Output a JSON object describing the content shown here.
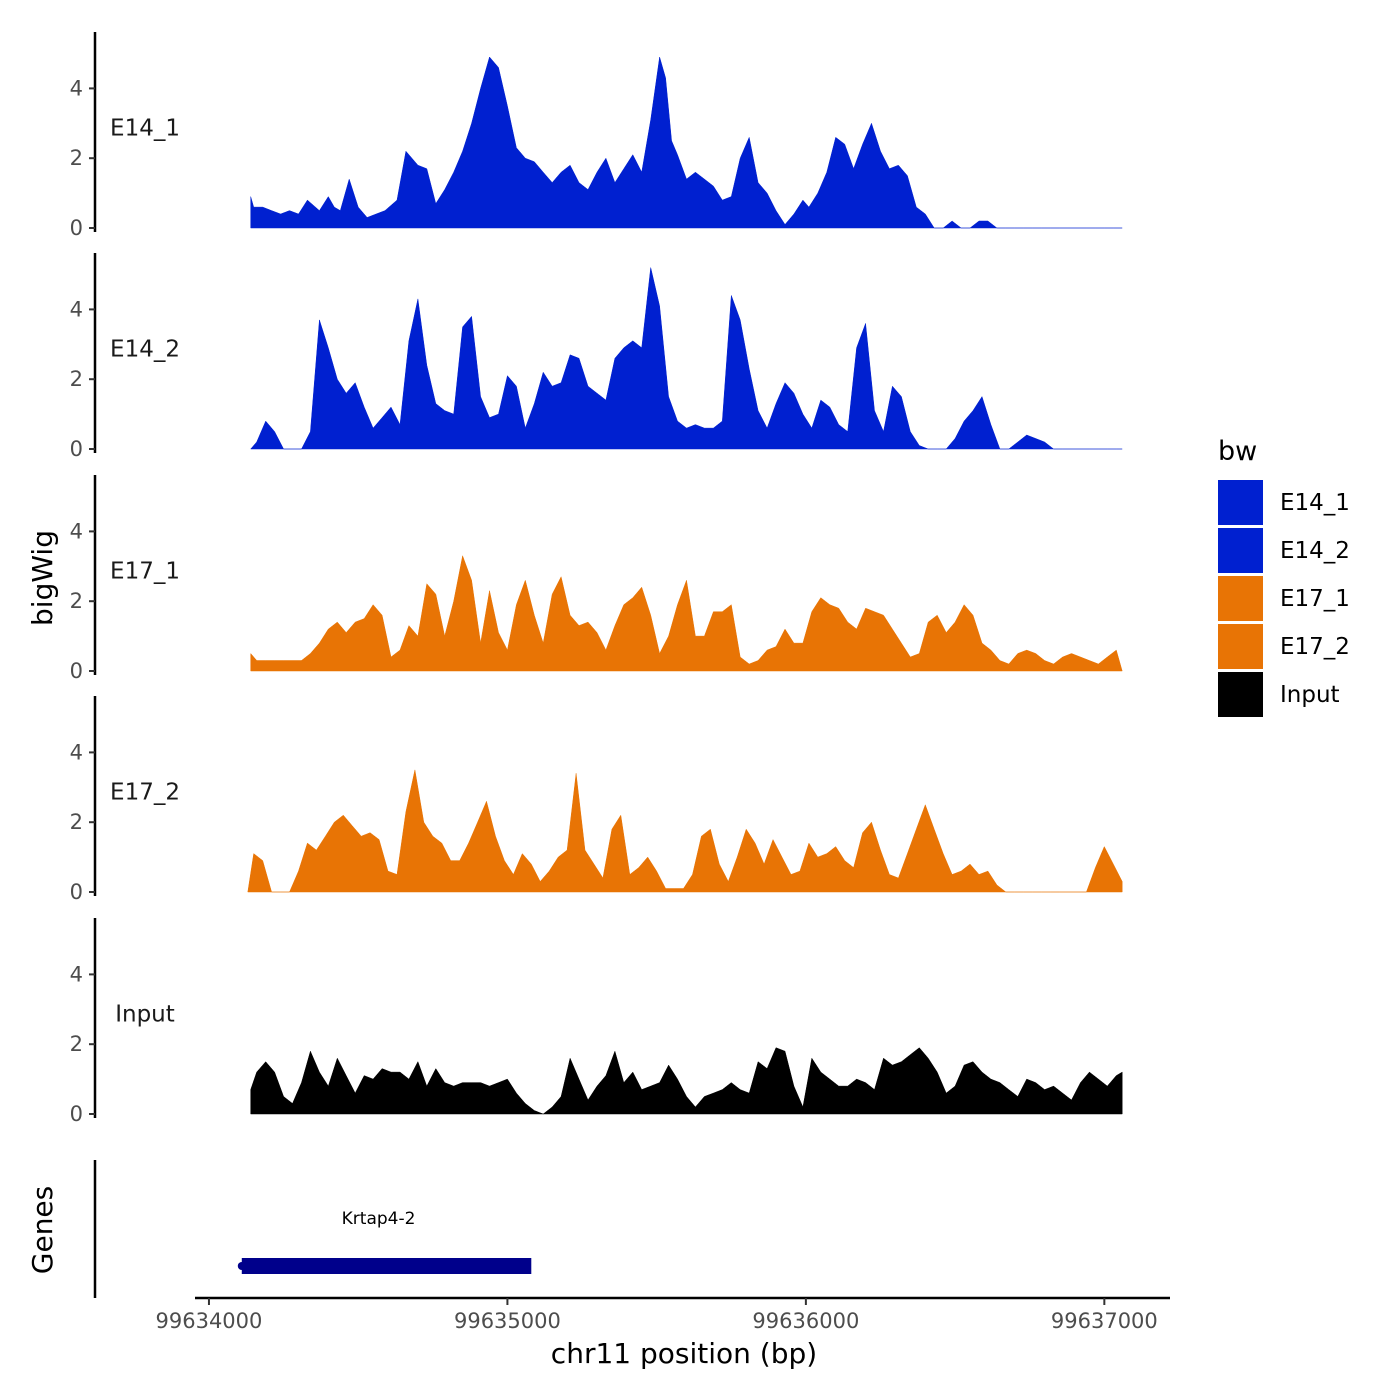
{
  "chart_data": {
    "type": "area",
    "ylabel": "bigWig",
    "xlabel": "chr11 position (bp)",
    "ylim": [
      0,
      5.6
    ],
    "yticks": [
      0,
      2,
      4
    ],
    "ytick_labels": [
      "0",
      "2",
      "4"
    ],
    "xlim": [
      99633970,
      99637220
    ],
    "xticks": [
      99634000,
      99635000,
      99636000,
      99637000
    ],
    "xtick_labels": [
      "99634000",
      "99635000",
      "99636000",
      "99637000"
    ],
    "legend": {
      "title": "bw",
      "entries": [
        {
          "label": "E14_1",
          "color": "#0020d0"
        },
        {
          "label": "E14_2",
          "color": "#0020d0"
        },
        {
          "label": "E17_1",
          "color": "#e87405"
        },
        {
          "label": "E17_2",
          "color": "#e87405"
        },
        {
          "label": "Input",
          "color": "#000000"
        }
      ]
    },
    "series": [
      {
        "name": "E14_1",
        "color": "#0020d0",
        "x": [
          99634140,
          99634150,
          99634180,
          99634210,
          99634240,
          99634270,
          99634300,
          99634330,
          99634370,
          99634400,
          99634420,
          99634440,
          99634470,
          99634500,
          99634530,
          99634560,
          99634590,
          99634630,
          99634660,
          99634700,
          99634730,
          99634760,
          99634790,
          99634820,
          99634850,
          99634880,
          99634910,
          99634940,
          99634970,
          99635000,
          99635030,
          99635060,
          99635090,
          99635120,
          99635150,
          99635180,
          99635210,
          99635240,
          99635270,
          99635300,
          99635330,
          99635360,
          99635390,
          99635420,
          99635450,
          99635480,
          99635510,
          99635530,
          99635550,
          99635570,
          99635600,
          99635630,
          99635660,
          99635690,
          99635720,
          99635750,
          99635780,
          99635810,
          99635840,
          99635870,
          99635900,
          99635930,
          99635960,
          99635990,
          99636010,
          99636040,
          99636070,
          99636100,
          99636130,
          99636160,
          99636190,
          99636220,
          99636250,
          99636280,
          99636310,
          99636340,
          99636370,
          99636400,
          99636430,
          99636460,
          99636490,
          99636520,
          99636550,
          99636580,
          99636610,
          99636640,
          99636670,
          99636700,
          99636730,
          99636760,
          99636790,
          99636820,
          99636850,
          99636880,
          99636910,
          99636940,
          99636970,
          99637000,
          99637030,
          99637060
        ],
        "values": [
          0.9,
          0.6,
          0.6,
          0.5,
          0.4,
          0.5,
          0.4,
          0.8,
          0.5,
          0.9,
          0.6,
          0.5,
          1.4,
          0.6,
          0.3,
          0.4,
          0.5,
          0.8,
          2.2,
          1.8,
          1.7,
          0.7,
          1.1,
          1.6,
          2.2,
          3.0,
          4.0,
          4.9,
          4.6,
          3.5,
          2.3,
          2.0,
          1.9,
          1.6,
          1.3,
          1.6,
          1.8,
          1.3,
          1.1,
          1.6,
          2.0,
          1.3,
          1.7,
          2.1,
          1.6,
          3.1,
          4.9,
          4.3,
          2.5,
          2.1,
          1.4,
          1.6,
          1.4,
          1.2,
          0.8,
          0.9,
          2.0,
          2.6,
          1.3,
          1.0,
          0.5,
          0.1,
          0.4,
          0.8,
          0.6,
          1.0,
          1.6,
          2.6,
          2.4,
          1.7,
          2.4,
          3.0,
          2.2,
          1.7,
          1.8,
          1.5,
          0.6,
          0.4,
          0.0,
          0.0,
          0.2,
          0.0,
          0.0,
          0.2,
          0.2,
          0.0,
          0.0,
          0.0,
          0.0,
          0.0,
          0.0,
          0.0,
          0.0,
          0.0,
          0.0,
          0.0,
          0.0,
          0.0,
          0.0,
          0.0
        ]
      },
      {
        "name": "E14_2",
        "color": "#0020d0",
        "x": [
          99634140,
          99634160,
          99634190,
          99634220,
          99634250,
          99634280,
          99634310,
          99634340,
          99634370,
          99634400,
          99634430,
          99634460,
          99634490,
          99634520,
          99634550,
          99634580,
          99634610,
          99634640,
          99634670,
          99634700,
          99634730,
          99634760,
          99634790,
          99634820,
          99634850,
          99634880,
          99634910,
          99634940,
          99634970,
          99635000,
          99635030,
          99635060,
          99635090,
          99635120,
          99635150,
          99635180,
          99635210,
          99635240,
          99635270,
          99635300,
          99635330,
          99635360,
          99635390,
          99635420,
          99635450,
          99635480,
          99635510,
          99635540,
          99635570,
          99635600,
          99635630,
          99635660,
          99635690,
          99635720,
          99635750,
          99635780,
          99635810,
          99635840,
          99635870,
          99635900,
          99635930,
          99635960,
          99635990,
          99636020,
          99636050,
          99636080,
          99636110,
          99636140,
          99636170,
          99636200,
          99636230,
          99636260,
          99636290,
          99636320,
          99636350,
          99636380,
          99636410,
          99636440,
          99636470,
          99636500,
          99636530,
          99636560,
          99636590,
          99636620,
          99636650,
          99636680,
          99636710,
          99636740,
          99636770,
          99636800,
          99636830,
          99636860,
          99636890,
          99636920,
          99636950,
          99636980,
          99637010,
          99637040,
          99637060
        ],
        "values": [
          0.0,
          0.2,
          0.8,
          0.5,
          0.0,
          0.0,
          0.0,
          0.5,
          3.7,
          2.9,
          2.0,
          1.6,
          1.9,
          1.2,
          0.6,
          0.9,
          1.2,
          0.7,
          3.1,
          4.3,
          2.4,
          1.3,
          1.1,
          1.0,
          3.5,
          3.8,
          1.5,
          0.9,
          1.0,
          2.1,
          1.8,
          0.6,
          1.3,
          2.2,
          1.8,
          1.9,
          2.7,
          2.6,
          1.8,
          1.6,
          1.4,
          2.6,
          2.9,
          3.1,
          2.9,
          5.2,
          4.1,
          1.5,
          0.8,
          0.6,
          0.7,
          0.6,
          0.6,
          0.8,
          4.4,
          3.7,
          2.3,
          1.1,
          0.6,
          1.3,
          1.9,
          1.6,
          1.0,
          0.6,
          1.4,
          1.2,
          0.7,
          0.5,
          2.9,
          3.6,
          1.1,
          0.5,
          1.8,
          1.5,
          0.5,
          0.1,
          0.0,
          0.0,
          0.0,
          0.3,
          0.8,
          1.1,
          1.5,
          0.7,
          0.0,
          0.0,
          0.2,
          0.4,
          0.3,
          0.2,
          0.0,
          0.0,
          0.0,
          0.0,
          0.0,
          0.0,
          0.0,
          0.0,
          0.0
        ]
      },
      {
        "name": "E17_1",
        "color": "#e87405",
        "x": [
          99634140,
          99634160,
          99634190,
          99634220,
          99634250,
          99634280,
          99634310,
          99634340,
          99634370,
          99634400,
          99634430,
          99634460,
          99634490,
          99634520,
          99634550,
          99634580,
          99634610,
          99634640,
          99634670,
          99634700,
          99634730,
          99634760,
          99634790,
          99634820,
          99634850,
          99634880,
          99634910,
          99634940,
          99634970,
          99635000,
          99635030,
          99635060,
          99635090,
          99635120,
          99635150,
          99635180,
          99635210,
          99635240,
          99635270,
          99635300,
          99635330,
          99635360,
          99635390,
          99635420,
          99635450,
          99635480,
          99635510,
          99635540,
          99635570,
          99635600,
          99635630,
          99635660,
          99635690,
          99635720,
          99635750,
          99635780,
          99635810,
          99635840,
          99635870,
          99635900,
          99635930,
          99635960,
          99635990,
          99636020,
          99636050,
          99636080,
          99636110,
          99636140,
          99636170,
          99636200,
          99636230,
          99636260,
          99636290,
          99636320,
          99636350,
          99636380,
          99636410,
          99636440,
          99636470,
          99636500,
          99636530,
          99636560,
          99636590,
          99636620,
          99636650,
          99636680,
          99636710,
          99636740,
          99636770,
          99636800,
          99636830,
          99636860,
          99636890,
          99636920,
          99636950,
          99636980,
          99637010,
          99637040,
          99637060
        ],
        "values": [
          0.5,
          0.3,
          0.3,
          0.3,
          0.3,
          0.3,
          0.3,
          0.5,
          0.8,
          1.2,
          1.4,
          1.1,
          1.4,
          1.5,
          1.9,
          1.6,
          0.4,
          0.6,
          1.3,
          1.0,
          2.5,
          2.2,
          1.0,
          2.0,
          3.3,
          2.6,
          0.8,
          2.3,
          1.1,
          0.6,
          1.9,
          2.6,
          1.6,
          0.8,
          2.2,
          2.7,
          1.6,
          1.3,
          1.4,
          1.1,
          0.6,
          1.3,
          1.9,
          2.1,
          2.4,
          1.6,
          0.5,
          1.0,
          1.9,
          2.6,
          1.0,
          1.0,
          1.7,
          1.7,
          1.9,
          0.4,
          0.2,
          0.3,
          0.6,
          0.7,
          1.2,
          0.8,
          0.8,
          1.7,
          2.1,
          1.9,
          1.8,
          1.4,
          1.2,
          1.8,
          1.7,
          1.6,
          1.2,
          0.8,
          0.4,
          0.5,
          1.4,
          1.6,
          1.1,
          1.4,
          1.9,
          1.6,
          0.8,
          0.6,
          0.3,
          0.2,
          0.5,
          0.6,
          0.5,
          0.3,
          0.2,
          0.4,
          0.5,
          0.4,
          0.3,
          0.2,
          0.4,
          0.6,
          0.0
        ]
      },
      {
        "name": "E17_2",
        "color": "#e87405",
        "x": [
          99634130,
          99634150,
          99634180,
          99634210,
          99634240,
          99634270,
          99634300,
          99634330,
          99634360,
          99634390,
          99634420,
          99634450,
          99634480,
          99634510,
          99634540,
          99634570,
          99634600,
          99634630,
          99634660,
          99634690,
          99634720,
          99634750,
          99634780,
          99634810,
          99634840,
          99634870,
          99634900,
          99634930,
          99634960,
          99634990,
          99635020,
          99635050,
          99635080,
          99635110,
          99635140,
          99635170,
          99635200,
          99635230,
          99635260,
          99635290,
          99635320,
          99635350,
          99635380,
          99635410,
          99635440,
          99635470,
          99635500,
          99635530,
          99635560,
          99635590,
          99635620,
          99635650,
          99635680,
          99635710,
          99635740,
          99635770,
          99635800,
          99635830,
          99635860,
          99635890,
          99635920,
          99635950,
          99635980,
          99636010,
          99636040,
          99636070,
          99636100,
          99636130,
          99636160,
          99636190,
          99636220,
          99636250,
          99636280,
          99636310,
          99636340,
          99636370,
          99636400,
          99636430,
          99636460,
          99636490,
          99636520,
          99636550,
          99636580,
          99636610,
          99636640,
          99636670,
          99636700,
          99636730,
          99636760,
          99636790,
          99636820,
          99636850,
          99636880,
          99636910,
          99636940,
          99636970,
          99637000,
          99637030,
          99637060
        ],
        "values": [
          0.0,
          1.1,
          0.9,
          0.0,
          0.0,
          0.0,
          0.6,
          1.4,
          1.2,
          1.6,
          2.0,
          2.2,
          1.9,
          1.6,
          1.7,
          1.5,
          0.6,
          0.5,
          2.3,
          3.5,
          2.0,
          1.6,
          1.4,
          0.9,
          0.9,
          1.4,
          2.0,
          2.6,
          1.6,
          0.9,
          0.5,
          1.1,
          0.8,
          0.3,
          0.6,
          1.0,
          1.2,
          3.4,
          1.2,
          0.8,
          0.4,
          1.8,
          2.2,
          0.5,
          0.7,
          1.0,
          0.6,
          0.1,
          0.1,
          0.1,
          0.5,
          1.6,
          1.8,
          0.8,
          0.3,
          1.0,
          1.8,
          1.4,
          0.8,
          1.5,
          1.0,
          0.5,
          0.6,
          1.4,
          1.0,
          1.1,
          1.3,
          0.9,
          0.7,
          1.7,
          2.0,
          1.2,
          0.5,
          0.4,
          1.1,
          1.8,
          2.5,
          1.8,
          1.1,
          0.5,
          0.6,
          0.8,
          0.5,
          0.6,
          0.2,
          0.0,
          0.0,
          0.0,
          0.0,
          0.0,
          0.0,
          0.0,
          0.0,
          0.0,
          0.0,
          0.7,
          1.3,
          0.8,
          0.3
        ]
      },
      {
        "name": "Input",
        "color": "#000000",
        "x": [
          99634140,
          99634160,
          99634190,
          99634220,
          99634250,
          99634280,
          99634310,
          99634340,
          99634370,
          99634400,
          99634430,
          99634460,
          99634490,
          99634520,
          99634550,
          99634580,
          99634610,
          99634640,
          99634670,
          99634700,
          99634730,
          99634760,
          99634790,
          99634820,
          99634850,
          99634880,
          99634910,
          99634940,
          99634970,
          99635000,
          99635030,
          99635060,
          99635090,
          99635120,
          99635150,
          99635180,
          99635210,
          99635240,
          99635270,
          99635300,
          99635330,
          99635360,
          99635390,
          99635420,
          99635450,
          99635480,
          99635510,
          99635540,
          99635570,
          99635600,
          99635630,
          99635660,
          99635690,
          99635720,
          99635750,
          99635780,
          99635810,
          99635840,
          99635870,
          99635900,
          99635930,
          99635960,
          99635990,
          99636020,
          99636050,
          99636080,
          99636110,
          99636140,
          99636170,
          99636200,
          99636230,
          99636260,
          99636290,
          99636320,
          99636350,
          99636380,
          99636410,
          99636440,
          99636470,
          99636500,
          99636530,
          99636560,
          99636590,
          99636620,
          99636650,
          99636680,
          99636710,
          99636740,
          99636770,
          99636800,
          99636830,
          99636860,
          99636890,
          99636920,
          99636950,
          99636980,
          99637010,
          99637040,
          99637060
        ],
        "values": [
          0.7,
          1.2,
          1.5,
          1.2,
          0.5,
          0.3,
          0.9,
          1.8,
          1.2,
          0.8,
          1.6,
          1.1,
          0.6,
          1.1,
          1.0,
          1.3,
          1.2,
          1.2,
          1.0,
          1.5,
          0.8,
          1.3,
          0.9,
          0.8,
          0.9,
          0.9,
          0.9,
          0.8,
          0.9,
          1.0,
          0.6,
          0.3,
          0.1,
          0.0,
          0.2,
          0.5,
          1.6,
          1.0,
          0.4,
          0.8,
          1.1,
          1.8,
          0.9,
          1.2,
          0.7,
          0.8,
          0.9,
          1.4,
          1.0,
          0.5,
          0.2,
          0.5,
          0.6,
          0.7,
          0.9,
          0.7,
          0.6,
          1.5,
          1.3,
          1.9,
          1.8,
          0.8,
          0.2,
          1.6,
          1.2,
          1.0,
          0.8,
          0.8,
          1.0,
          0.9,
          0.7,
          1.6,
          1.4,
          1.5,
          1.7,
          1.9,
          1.6,
          1.2,
          0.6,
          0.8,
          1.4,
          1.5,
          1.2,
          1.0,
          0.9,
          0.7,
          0.5,
          1.0,
          0.9,
          0.7,
          0.8,
          0.6,
          0.4,
          0.9,
          1.2,
          1.0,
          0.8,
          1.1,
          1.2
        ]
      }
    ],
    "genes": {
      "track_label": "Genes",
      "items": [
        {
          "name": "Krtap4-2",
          "start": 99634110,
          "end": 99635080,
          "color": "#00008b"
        }
      ]
    }
  }
}
